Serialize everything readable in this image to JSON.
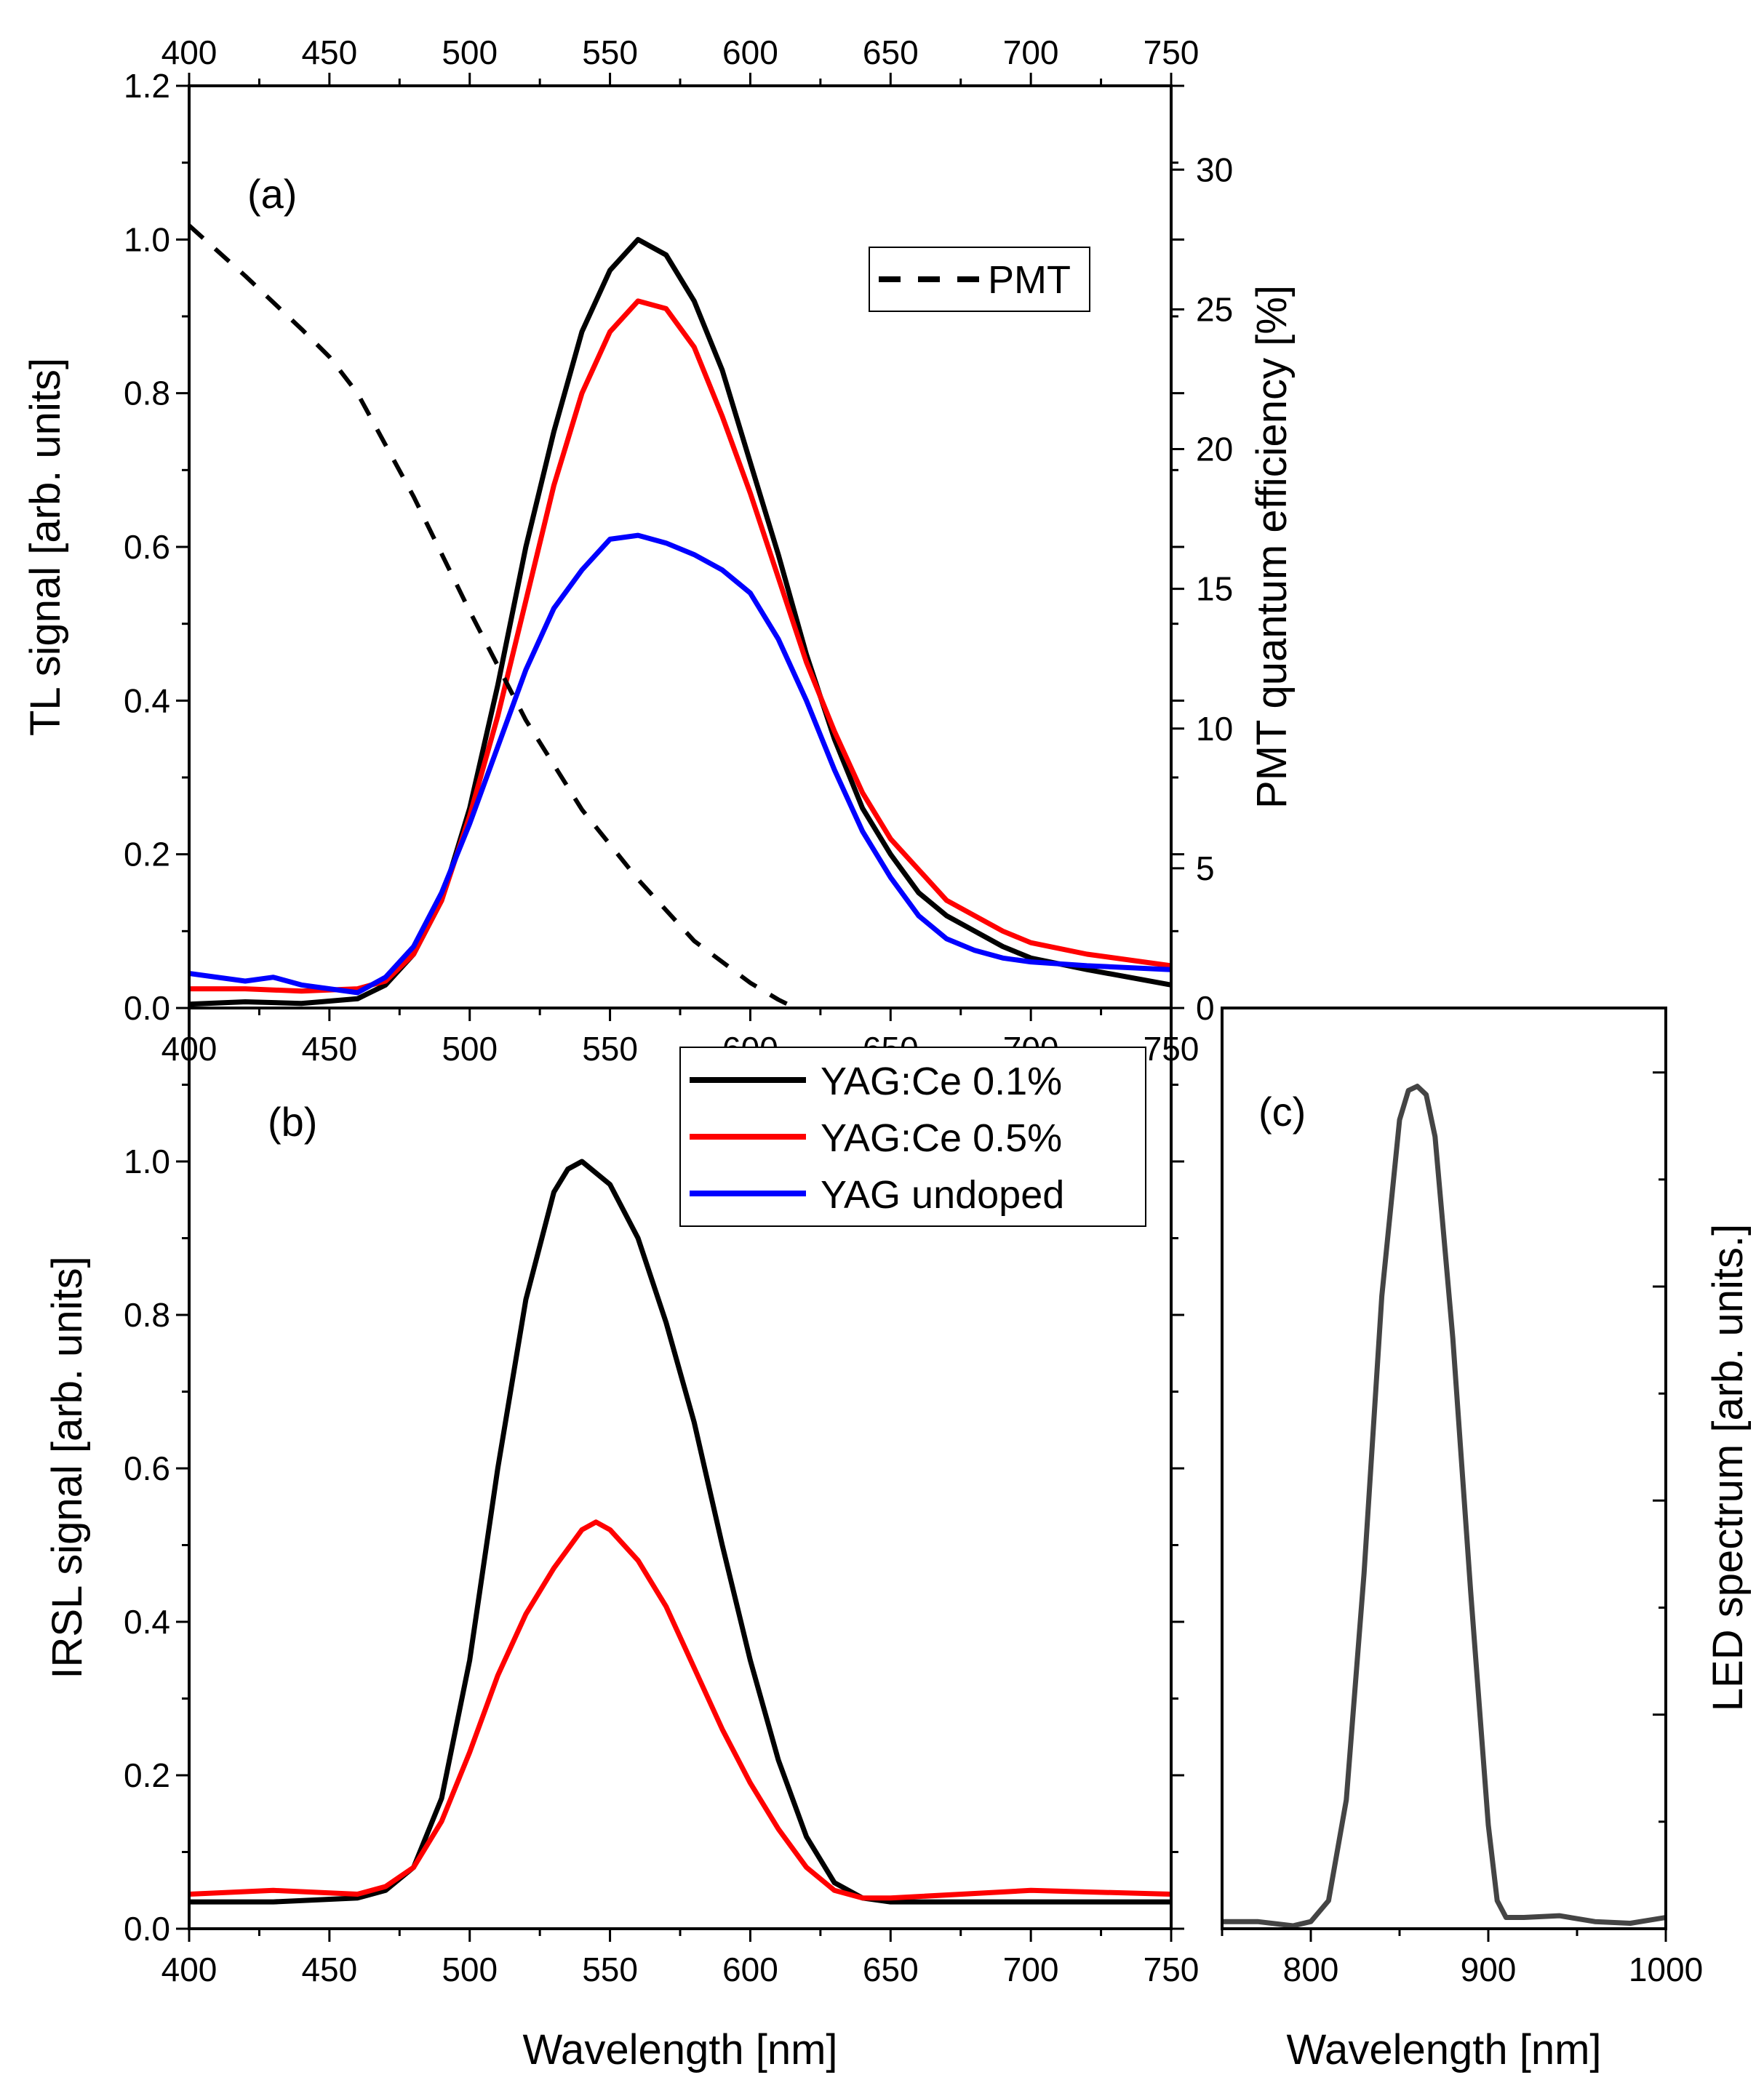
{
  "chart_data": [
    {
      "id": "a",
      "type": "line",
      "panel_label": "(a)",
      "xlabel": "",
      "ylabel": "TL signal [arb. units]",
      "y2label": "PMT quantum efficiency [%]",
      "xlim": [
        400,
        750
      ],
      "ylim": [
        0,
        1.2
      ],
      "y2lim": [
        0,
        33
      ],
      "x_ticks": [
        "400",
        "450",
        "500",
        "550",
        "600",
        "650",
        "700",
        "750"
      ],
      "y_ticks": [
        "0.0",
        "0.2",
        "0.4",
        "0.6",
        "0.8",
        "1.0",
        "1.2"
      ],
      "y2_ticks": [
        "0",
        "5",
        "10",
        "15",
        "20",
        "25",
        "30"
      ],
      "legend": [
        "PMT"
      ],
      "legend_position": "top-right",
      "series": [
        {
          "name": "YAG:Ce 0.1%",
          "color": "#000000",
          "style": "solid",
          "x": [
            400,
            420,
            440,
            460,
            470,
            480,
            490,
            500,
            510,
            520,
            530,
            540,
            550,
            560,
            570,
            580,
            590,
            600,
            610,
            620,
            630,
            640,
            650,
            660,
            670,
            680,
            690,
            700,
            720,
            750
          ],
          "y": [
            0.005,
            0.008,
            0.006,
            0.012,
            0.03,
            0.07,
            0.14,
            0.26,
            0.42,
            0.6,
            0.75,
            0.88,
            0.96,
            1.0,
            0.98,
            0.92,
            0.83,
            0.71,
            0.59,
            0.46,
            0.35,
            0.26,
            0.2,
            0.15,
            0.12,
            0.1,
            0.08,
            0.065,
            0.05,
            0.03
          ]
        },
        {
          "name": "YAG:Ce 0.5%",
          "color": "#ff0000",
          "style": "solid",
          "x": [
            400,
            420,
            440,
            460,
            470,
            480,
            490,
            500,
            510,
            520,
            530,
            540,
            550,
            560,
            570,
            580,
            590,
            600,
            610,
            620,
            630,
            640,
            650,
            660,
            670,
            680,
            690,
            700,
            720,
            750
          ],
          "y": [
            0.025,
            0.025,
            0.022,
            0.025,
            0.035,
            0.07,
            0.14,
            0.25,
            0.38,
            0.53,
            0.68,
            0.8,
            0.88,
            0.92,
            0.91,
            0.86,
            0.77,
            0.67,
            0.56,
            0.45,
            0.36,
            0.28,
            0.22,
            0.18,
            0.14,
            0.12,
            0.1,
            0.085,
            0.07,
            0.055
          ]
        },
        {
          "name": "YAG undoped",
          "color": "#0000ff",
          "style": "solid",
          "x": [
            400,
            420,
            430,
            440,
            460,
            470,
            480,
            490,
            500,
            510,
            520,
            530,
            540,
            550,
            560,
            570,
            580,
            590,
            600,
            610,
            620,
            630,
            640,
            650,
            660,
            670,
            680,
            690,
            700,
            720,
            750
          ],
          "y": [
            0.045,
            0.035,
            0.04,
            0.03,
            0.02,
            0.04,
            0.08,
            0.15,
            0.24,
            0.34,
            0.44,
            0.52,
            0.57,
            0.61,
            0.615,
            0.605,
            0.59,
            0.57,
            0.54,
            0.48,
            0.4,
            0.31,
            0.23,
            0.17,
            0.12,
            0.09,
            0.075,
            0.065,
            0.06,
            0.055,
            0.05
          ]
        },
        {
          "name": "PMT",
          "color": "#000000",
          "style": "dashed",
          "axis": "right",
          "x": [
            400,
            420,
            440,
            450,
            460,
            480,
            500,
            520,
            540,
            560,
            580,
            600,
            610,
            616
          ],
          "y": [
            28,
            26.2,
            24.3,
            23.3,
            22,
            18.3,
            14.2,
            10.3,
            7.1,
            4.6,
            2.4,
            0.9,
            0.3,
            0
          ]
        }
      ]
    },
    {
      "id": "b",
      "type": "line",
      "panel_label": "(b)",
      "xlabel": "Wavelength [nm]",
      "ylabel": "IRSL signal [arb. units]",
      "xlim": [
        400,
        750
      ],
      "ylim": [
        0,
        1.2
      ],
      "x_ticks": [
        "400",
        "450",
        "500",
        "550",
        "600",
        "650",
        "700",
        "750"
      ],
      "y_ticks": [
        "0.0",
        "0.2",
        "0.4",
        "0.6",
        "0.8",
        "1.0"
      ],
      "legend": [
        "YAG:Ce 0.1%",
        "YAG:Ce 0.5%",
        "YAG undoped"
      ],
      "legend_position": "top-right",
      "series": [
        {
          "name": "YAG:Ce 0.1%",
          "color": "#000000",
          "style": "solid",
          "x": [
            400,
            430,
            460,
            470,
            480,
            490,
            500,
            510,
            520,
            530,
            535,
            540,
            550,
            560,
            570,
            580,
            590,
            600,
            610,
            620,
            630,
            640,
            650,
            700,
            750
          ],
          "y": [
            0.035,
            0.035,
            0.04,
            0.05,
            0.08,
            0.17,
            0.35,
            0.6,
            0.82,
            0.96,
            0.99,
            1.0,
            0.97,
            0.9,
            0.79,
            0.66,
            0.5,
            0.35,
            0.22,
            0.12,
            0.06,
            0.04,
            0.035,
            0.035,
            0.035
          ]
        },
        {
          "name": "YAG:Ce 0.5%",
          "color": "#ff0000",
          "style": "solid",
          "x": [
            400,
            430,
            460,
            470,
            480,
            490,
            500,
            510,
            520,
            530,
            540,
            545,
            550,
            560,
            570,
            580,
            590,
            600,
            610,
            620,
            630,
            640,
            650,
            700,
            750
          ],
          "y": [
            0.045,
            0.05,
            0.045,
            0.055,
            0.08,
            0.14,
            0.23,
            0.33,
            0.41,
            0.47,
            0.52,
            0.53,
            0.52,
            0.48,
            0.42,
            0.34,
            0.26,
            0.19,
            0.13,
            0.08,
            0.05,
            0.04,
            0.04,
            0.05,
            0.045
          ]
        }
      ]
    },
    {
      "id": "c",
      "type": "line",
      "panel_label": "(c)",
      "xlabel": "Wavelength [nm]",
      "ylabel": "LED spectrum [arb. units.]",
      "xlim": [
        750,
        1000
      ],
      "ylim": [
        0,
        1
      ],
      "x_ticks": [
        "800",
        "900",
        "1000"
      ],
      "series": [
        {
          "name": "LED",
          "color": "#444444",
          "style": "solid",
          "x": [
            750,
            770,
            790,
            800,
            810,
            820,
            830,
            840,
            850,
            855,
            860,
            865,
            870,
            880,
            890,
            900,
            905,
            910,
            920,
            940,
            960,
            980,
            1000
          ],
          "y": [
            0.005,
            0.005,
            0.0,
            0.005,
            0.03,
            0.15,
            0.42,
            0.75,
            0.96,
            0.995,
            1.0,
            0.99,
            0.94,
            0.7,
            0.4,
            0.12,
            0.03,
            0.01,
            0.01,
            0.012,
            0.005,
            0.003,
            0.01
          ]
        }
      ]
    }
  ]
}
